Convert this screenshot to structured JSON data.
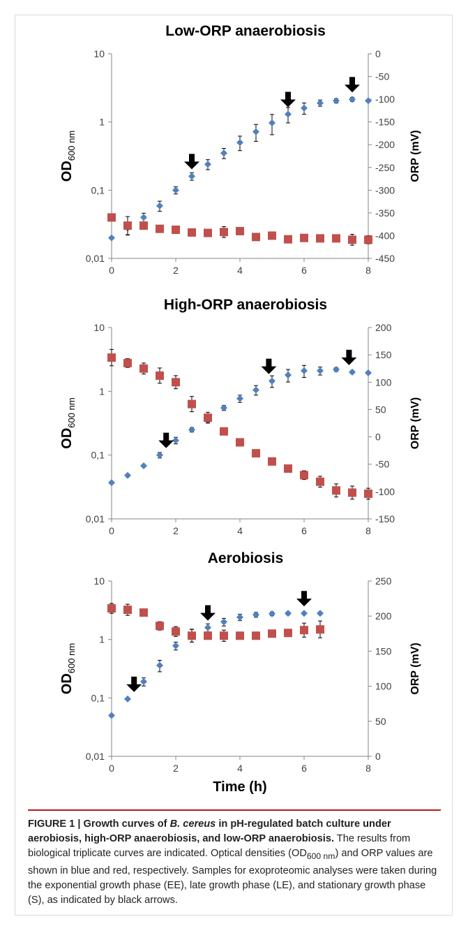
{
  "colors": {
    "od": "#4f81bd",
    "orp": "#c0504d",
    "arrow": "#000000",
    "axis": "#000000",
    "tick_text": "#404040"
  },
  "x_label": "Time (h)",
  "caption": {
    "figure_label": "FIGURE 1 | ",
    "bold_text_1": "Growth curves of ",
    "bold_italic": "B. cereus",
    "bold_text_2": " in pH-regulated batch culture under aerobiosis, high-ORP anaerobiosis, and low-ORP anaerobiosis.",
    "body_1": " The results from biological triplicate curves are indicated. Optical densities (OD",
    "body_sub": "600 nm",
    "body_2": ") and ORP values are shown in blue and red, respectively. Samples for exoproteomic analyses were taken during the exponential growth phase (EE), late growth phase (LE), and stationary growth phase (S), as indicated by black arrows."
  },
  "chart_data": [
    {
      "type": "scatter",
      "title": "Low-ORP anaerobiosis",
      "ylabel_left": "OD",
      "ylabel_left_sub": "600 nm",
      "ylabel_right": "ORP (mV)",
      "x_ticks": [
        "0",
        "2",
        "4",
        "6",
        "8"
      ],
      "xlim": [
        0,
        8
      ],
      "y_left_scale": "log",
      "y_left_lim": [
        0.01,
        10
      ],
      "y_left_ticks": [
        "10",
        "1",
        "0,1",
        "0,01"
      ],
      "y_right_lim": [
        -450,
        0
      ],
      "y_right_ticks": [
        "0",
        "-50",
        "-100",
        "-150",
        "-200",
        "-250",
        "-300",
        "-350",
        "-400",
        "-450"
      ],
      "series": [
        {
          "axis": "left",
          "marker": "diamond",
          "points": [
            {
              "x": 0,
              "y": 0.02,
              "err": 0
            },
            {
              "x": 0.5,
              "y": 0.028,
              "err": 0.006
            },
            {
              "x": 1,
              "y": 0.04,
              "err": 0.006
            },
            {
              "x": 1.5,
              "y": 0.059,
              "err": 0.01
            },
            {
              "x": 2,
              "y": 0.1,
              "err": 0.012
            },
            {
              "x": 2.5,
              "y": 0.16,
              "err": 0.02
            },
            {
              "x": 3,
              "y": 0.24,
              "err": 0.04
            },
            {
              "x": 3.5,
              "y": 0.35,
              "err": 0.06
            },
            {
              "x": 4,
              "y": 0.5,
              "err": 0.12
            },
            {
              "x": 4.5,
              "y": 0.72,
              "err": 0.2
            },
            {
              "x": 5,
              "y": 0.97,
              "err": 0.32
            },
            {
              "x": 5.5,
              "y": 1.3,
              "err": 0.33
            },
            {
              "x": 6,
              "y": 1.6,
              "err": 0.3
            },
            {
              "x": 6.5,
              "y": 1.9,
              "err": 0.2
            },
            {
              "x": 7,
              "y": 2.05,
              "err": 0.15
            },
            {
              "x": 7.5,
              "y": 2.15,
              "err": 0.15
            },
            {
              "x": 8,
              "y": 2.05,
              "err": 0
            }
          ]
        },
        {
          "axis": "right",
          "marker": "square",
          "points": [
            {
              "x": 0,
              "y": -360,
              "err": 8
            },
            {
              "x": 0.5,
              "y": -378,
              "err": 20
            },
            {
              "x": 1,
              "y": -378,
              "err": 8
            },
            {
              "x": 1.5,
              "y": -385,
              "err": 8
            },
            {
              "x": 2,
              "y": -387,
              "err": 6
            },
            {
              "x": 2.5,
              "y": -393,
              "err": 6
            },
            {
              "x": 3,
              "y": -394,
              "err": 6
            },
            {
              "x": 3.5,
              "y": -392,
              "err": 12
            },
            {
              "x": 4,
              "y": -390,
              "err": 6
            },
            {
              "x": 4.5,
              "y": -403,
              "err": 6
            },
            {
              "x": 5,
              "y": -400,
              "err": 6
            },
            {
              "x": 5.5,
              "y": -408,
              "err": 5
            },
            {
              "x": 6,
              "y": -405,
              "err": 5
            },
            {
              "x": 6.5,
              "y": -406,
              "err": 5
            },
            {
              "x": 7,
              "y": -406,
              "err": 6
            },
            {
              "x": 7.5,
              "y": -409,
              "err": 12
            },
            {
              "x": 8,
              "y": -409,
              "err": 9
            }
          ]
        }
      ],
      "arrows": [
        {
          "x": 2.5,
          "y": 0.16
        },
        {
          "x": 5.5,
          "y": 1.3
        },
        {
          "x": 7.5,
          "y": 2.15
        }
      ]
    },
    {
      "type": "scatter",
      "title": "High-ORP anaerobiosis",
      "ylabel_left": "OD",
      "ylabel_left_sub": "600 nm",
      "ylabel_right": "ORP (mV)",
      "x_ticks": [
        "0",
        "2",
        "4",
        "6",
        "8"
      ],
      "xlim": [
        0,
        8
      ],
      "y_left_scale": "log",
      "y_left_lim": [
        0.01,
        10
      ],
      "y_left_ticks": [
        "10",
        "1",
        "0,1",
        "0,01"
      ],
      "y_right_lim": [
        -150,
        200
      ],
      "y_right_ticks": [
        "200",
        "150",
        "100",
        "50",
        "0",
        "-50",
        "-100",
        "-150"
      ],
      "series": [
        {
          "axis": "left",
          "marker": "diamond",
          "points": [
            {
              "x": 0,
              "y": 0.037,
              "err": 0
            },
            {
              "x": 0.5,
              "y": 0.048,
              "err": 0
            },
            {
              "x": 1,
              "y": 0.068,
              "err": 0
            },
            {
              "x": 1.5,
              "y": 0.1,
              "err": 0.01
            },
            {
              "x": 2,
              "y": 0.17,
              "err": 0.02
            },
            {
              "x": 2.5,
              "y": 0.25,
              "err": 0.02
            },
            {
              "x": 3,
              "y": 0.37,
              "err": 0.04
            },
            {
              "x": 3.5,
              "y": 0.55,
              "err": 0.05
            },
            {
              "x": 4,
              "y": 0.77,
              "err": 0.1
            },
            {
              "x": 4.5,
              "y": 1.05,
              "err": 0.18
            },
            {
              "x": 5,
              "y": 1.45,
              "err": 0.3
            },
            {
              "x": 5.5,
              "y": 1.8,
              "err": 0.4
            },
            {
              "x": 6,
              "y": 2.1,
              "err": 0.45
            },
            {
              "x": 6.5,
              "y": 2.1,
              "err": 0.3
            },
            {
              "x": 7,
              "y": 2.2,
              "err": 0.15
            },
            {
              "x": 7.5,
              "y": 2.0,
              "err": 0.1
            },
            {
              "x": 8,
              "y": 1.95,
              "err": 0
            }
          ]
        },
        {
          "axis": "right",
          "marker": "square",
          "points": [
            {
              "x": 0,
              "y": 145,
              "err": 15
            },
            {
              "x": 0.5,
              "y": 135,
              "err": 8
            },
            {
              "x": 1,
              "y": 125,
              "err": 10
            },
            {
              "x": 1.5,
              "y": 112,
              "err": 14
            },
            {
              "x": 2,
              "y": 100,
              "err": 12
            },
            {
              "x": 2.5,
              "y": 60,
              "err": 14
            },
            {
              "x": 3,
              "y": 35,
              "err": 10
            },
            {
              "x": 3.5,
              "y": 10,
              "err": 4
            },
            {
              "x": 4,
              "y": -10,
              "err": 4
            },
            {
              "x": 4.5,
              "y": -30,
              "err": 4
            },
            {
              "x": 5,
              "y": -45,
              "err": 4
            },
            {
              "x": 5.5,
              "y": -58,
              "err": 5
            },
            {
              "x": 6,
              "y": -70,
              "err": 8
            },
            {
              "x": 6.5,
              "y": -82,
              "err": 10
            },
            {
              "x": 7,
              "y": -98,
              "err": 12
            },
            {
              "x": 7.5,
              "y": -102,
              "err": 12
            },
            {
              "x": 8,
              "y": -104,
              "err": 10
            }
          ]
        }
      ],
      "arrows": [
        {
          "x": 1.7,
          "y": 0.1
        },
        {
          "x": 4.9,
          "y": 1.45
        },
        {
          "x": 7.4,
          "y": 2.0
        }
      ]
    },
    {
      "type": "scatter",
      "title": "Aerobiosis",
      "ylabel_left": "OD",
      "ylabel_left_sub": "600 nm",
      "ylabel_right": "ORP (mV)",
      "x_ticks": [
        "0",
        "2",
        "4",
        "6",
        "8"
      ],
      "xlim": [
        0,
        8
      ],
      "y_left_scale": "log",
      "y_left_lim": [
        0.01,
        10
      ],
      "y_left_ticks": [
        "10",
        "1",
        "0,1",
        "0,01"
      ],
      "y_right_lim": [
        0,
        250
      ],
      "y_right_ticks": [
        "250",
        "200",
        "150",
        "100",
        "50",
        "0"
      ],
      "series": [
        {
          "axis": "left",
          "marker": "diamond",
          "points": [
            {
              "x": 0,
              "y": 0.05,
              "err": 0
            },
            {
              "x": 0.5,
              "y": 0.096,
              "err": 0
            },
            {
              "x": 1,
              "y": 0.19,
              "err": 0.03
            },
            {
              "x": 1.5,
              "y": 0.36,
              "err": 0.08
            },
            {
              "x": 2,
              "y": 0.78,
              "err": 0.12
            },
            {
              "x": 2.5,
              "y": 1.2,
              "err": 0.3
            },
            {
              "x": 3,
              "y": 1.6,
              "err": 0.25
            },
            {
              "x": 3.5,
              "y": 2.0,
              "err": 0.3
            },
            {
              "x": 4,
              "y": 2.4,
              "err": 0.3
            },
            {
              "x": 4.5,
              "y": 2.65,
              "err": 0.25
            },
            {
              "x": 5,
              "y": 2.75,
              "err": 0.2
            },
            {
              "x": 5.5,
              "y": 2.8,
              "err": 0.15
            },
            {
              "x": 6,
              "y": 2.8,
              "err": 0.1
            },
            {
              "x": 6.5,
              "y": 2.8,
              "err": 0.1
            }
          ]
        },
        {
          "axis": "right",
          "marker": "square",
          "points": [
            {
              "x": 0,
              "y": 211,
              "err": 7
            },
            {
              "x": 0.5,
              "y": 209,
              "err": 8
            },
            {
              "x": 1,
              "y": 205,
              "err": 5
            },
            {
              "x": 1.5,
              "y": 186,
              "err": 6
            },
            {
              "x": 2,
              "y": 178,
              "err": 7
            },
            {
              "x": 2.5,
              "y": 172,
              "err": 9
            },
            {
              "x": 3,
              "y": 172,
              "err": 5
            },
            {
              "x": 3.5,
              "y": 172,
              "err": 8
            },
            {
              "x": 4,
              "y": 172,
              "err": 5
            },
            {
              "x": 4.5,
              "y": 172,
              "err": 5
            },
            {
              "x": 5,
              "y": 175,
              "err": 5
            },
            {
              "x": 5.5,
              "y": 176,
              "err": 5
            },
            {
              "x": 6,
              "y": 180,
              "err": 10
            },
            {
              "x": 6.5,
              "y": 181,
              "err": 12
            }
          ]
        }
      ],
      "arrows": [
        {
          "x": 0.7,
          "y": 0.096
        },
        {
          "x": 3.0,
          "y": 1.6
        },
        {
          "x": 6.0,
          "y": 2.8
        }
      ]
    }
  ]
}
